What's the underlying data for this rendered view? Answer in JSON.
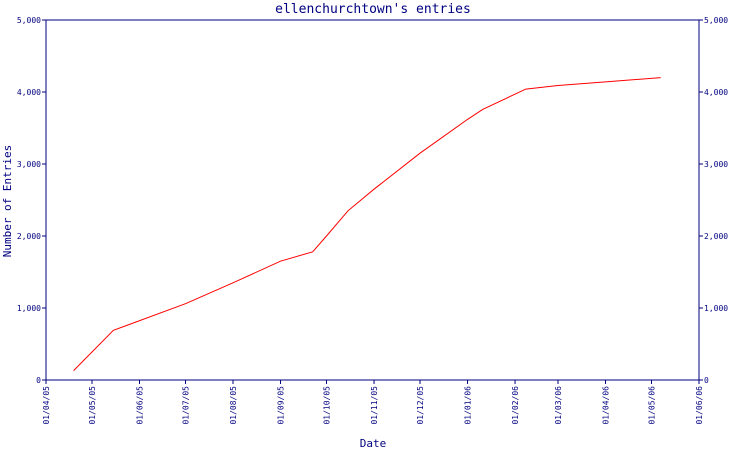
{
  "chart_data": {
    "type": "line",
    "title": "ellenchurchtown's entries",
    "xlabel": "Date",
    "ylabel": "Number of Entries",
    "x_tick_labels": [
      "01/04/05",
      "01/05/05",
      "01/06/05",
      "01/07/05",
      "01/08/05",
      "01/09/05",
      "01/10/05",
      "01/11/05",
      "01/12/05",
      "01/01/06",
      "01/02/06",
      "01/03/06",
      "01/04/06",
      "01/05/06",
      "01/06/06"
    ],
    "y_ticks": [
      0,
      1000,
      2000,
      3000,
      4000,
      5000
    ],
    "y_tick_labels": [
      "0",
      "1,000",
      "2,000",
      "3,000",
      "4,000",
      "5,000"
    ],
    "ylim": [
      0,
      5000
    ],
    "grid": false,
    "colors": {
      "line": "#ff0000",
      "axis": "#000080"
    },
    "series": [
      {
        "points": [
          {
            "x": "2005-04-19",
            "y": 130
          },
          {
            "x": "2005-05-15",
            "y": 690
          },
          {
            "x": "2005-07-01",
            "y": 1060
          },
          {
            "x": "2005-08-01",
            "y": 1350
          },
          {
            "x": "2005-09-01",
            "y": 1650
          },
          {
            "x": "2005-09-22",
            "y": 1780
          },
          {
            "x": "2005-10-01",
            "y": 2000
          },
          {
            "x": "2005-10-15",
            "y": 2350
          },
          {
            "x": "2005-11-01",
            "y": 2650
          },
          {
            "x": "2005-12-01",
            "y": 3150
          },
          {
            "x": "2006-01-01",
            "y": 3620
          },
          {
            "x": "2006-01-11",
            "y": 3760
          },
          {
            "x": "2006-02-08",
            "y": 4040
          },
          {
            "x": "2006-03-01",
            "y": 4090
          },
          {
            "x": "2006-04-01",
            "y": 4140
          },
          {
            "x": "2006-05-07",
            "y": 4200
          }
        ]
      }
    ]
  }
}
